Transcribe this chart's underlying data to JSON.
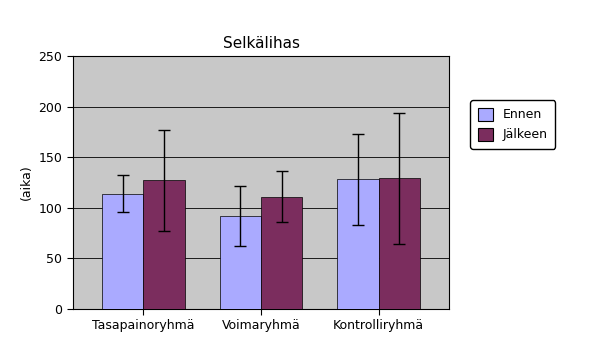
{
  "title": "Selkälihas",
  "ylabel": "(aika)",
  "categories": [
    "Tasapainoryhmä",
    "Voimaryhmä",
    "Kontrolliryhmä"
  ],
  "series": [
    {
      "label": "Ennen",
      "values": [
        114,
        92,
        128
      ],
      "errors": [
        18,
        30,
        45
      ],
      "color": "#AAAAFF"
    },
    {
      "label": "Jälkeen",
      "values": [
        127,
        111,
        129
      ],
      "errors": [
        50,
        25,
        65
      ],
      "color": "#7B2D5E"
    }
  ],
  "ylim": [
    0,
    250
  ],
  "yticks": [
    0,
    50,
    100,
    150,
    200,
    250
  ],
  "plot_bg_color": "#C8C8C8",
  "outer_bg_color": "#FFFFFF",
  "bar_width": 0.35,
  "title_fontsize": 11,
  "axis_fontsize": 9,
  "tick_fontsize": 9
}
